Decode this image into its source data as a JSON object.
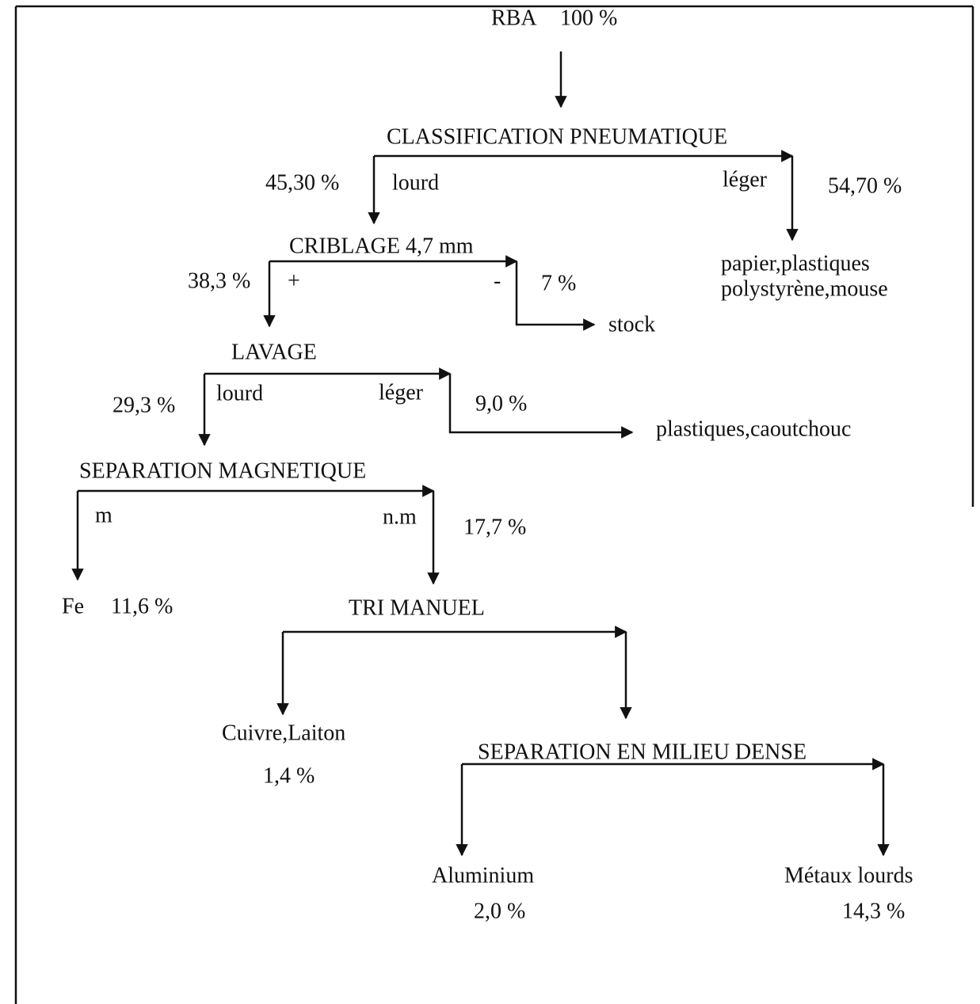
{
  "source": {
    "label": "RBA",
    "percent": "100 %"
  },
  "steps": [
    {
      "title": "CLASSIFICATION PNEUMATIQUE",
      "branches": [
        {
          "label": "lourd",
          "percent": "45,30 %"
        },
        {
          "label": "léger",
          "percent": "54,70 %",
          "output": [
            "papier,plastiques",
            "polystyrène,mouse"
          ]
        }
      ]
    },
    {
      "title": "CRIBLAGE 4,7 mm",
      "branches": [
        {
          "label": "+",
          "percent": "38,3 %"
        },
        {
          "label": "-",
          "percent": "7 %",
          "output": [
            "stock"
          ]
        }
      ]
    },
    {
      "title": "LAVAGE",
      "branches": [
        {
          "label": "lourd",
          "percent": "29,3 %"
        },
        {
          "label": "léger",
          "percent": "9,0 %",
          "output": [
            "plastiques,caoutchouc"
          ]
        }
      ]
    },
    {
      "title": "SEPARATION MAGNETIQUE",
      "branches": [
        {
          "label": "m",
          "output": [
            "Fe"
          ],
          "percent": "11,6 %"
        },
        {
          "label": "n.m",
          "percent": "17,7 %"
        }
      ]
    },
    {
      "title": "TRI MANUEL",
      "branches": [
        {
          "output": [
            "Cuivre,Laiton"
          ],
          "percent": "1,4 %"
        }
      ]
    },
    {
      "title": "SEPARATION EN MILIEU DENSE",
      "branches": [
        {
          "output": [
            "Aluminium"
          ],
          "percent": "2,0 %"
        },
        {
          "output": [
            "Métaux lourds"
          ],
          "percent": "14,3 %"
        }
      ]
    }
  ]
}
